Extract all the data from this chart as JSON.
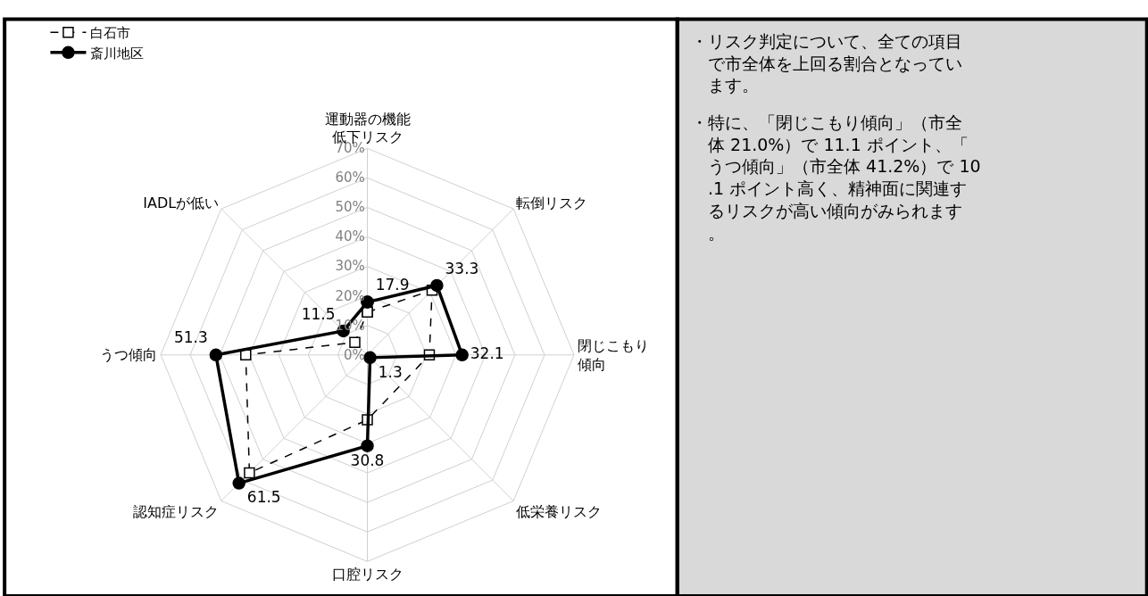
{
  "chart_data": {
    "type": "radar",
    "categories": [
      "運動器の機能低下リスク",
      "転倒リスク",
      "閉じこもり傾向",
      "低栄養リスク",
      "口腔リスク",
      "認知症リスク",
      "うつ傾向",
      "IADLが低い"
    ],
    "ylim": [
      0,
      70
    ],
    "yticks": [
      {
        "value": 0,
        "label": "0%"
      },
      {
        "value": 10,
        "label": "10%"
      },
      {
        "value": 20,
        "label": "20%"
      },
      {
        "value": 30,
        "label": "30%"
      },
      {
        "value": 40,
        "label": "40%"
      },
      {
        "value": 50,
        "label": "50%"
      },
      {
        "value": 60,
        "label": "60%"
      },
      {
        "value": 70,
        "label": "70%"
      }
    ],
    "series": [
      {
        "name": "白石市",
        "color": "#000000",
        "values": [
          14.5,
          31.0,
          21.0,
          null,
          22.0,
          56.5,
          41.2,
          6.0
        ],
        "marker": "square",
        "line_style": "dashed"
      },
      {
        "name": "斎川地区",
        "color": "#000000",
        "values": [
          17.9,
          33.3,
          32.1,
          1.3,
          30.8,
          61.5,
          51.3,
          11.5
        ],
        "marker": "circle",
        "line_style": "solid",
        "value_labels": [
          "17.9",
          "33.3",
          "32.1",
          "1.3",
          "30.8",
          "61.5",
          "51.3",
          "11.5"
        ]
      }
    ],
    "legend": "top left",
    "grid": true,
    "annotations": [
      "・リスク判定について、全ての項目で市全体を上回る割合となっています。",
      "・特に、「閉じこもり傾向」（市全体 21.0%）で 11.1 ポイント、「うつ傾向」（市全体 41.2%）で 10.1 ポイント高く、精神面に関連するリスクが高い傾向がみられます。"
    ]
  }
}
